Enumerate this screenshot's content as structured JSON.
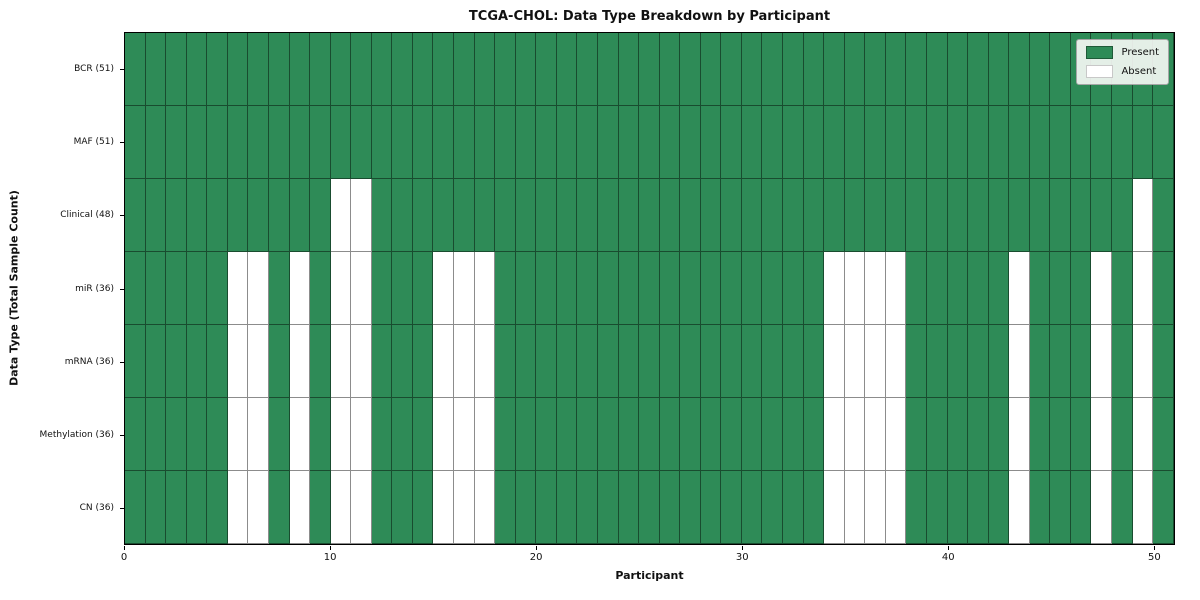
{
  "title": "TCGA-CHOL: Data Type Breakdown by Participant",
  "xlabel": "Participant",
  "ylabel": "Data Type (Total Sample Count)",
  "legend": {
    "present_label": "Present",
    "absent_label": "Absent"
  },
  "colors": {
    "present": "#2e8b57",
    "absent": "#ffffff",
    "grid": "rgba(0,0,0,0.45)",
    "frame": "#000000"
  },
  "chart_data": {
    "type": "heatmap",
    "title": "TCGA-CHOL: Data Type Breakdown by Participant",
    "xlabel": "Participant",
    "ylabel": "Data Type (Total Sample Count)",
    "x_range": [
      0,
      51
    ],
    "x_ticks": [
      0,
      10,
      20,
      30,
      40,
      50
    ],
    "n_participants": 51,
    "cell_states": [
      "Present",
      "Absent"
    ],
    "rows": [
      {
        "name": "BCR",
        "label": "BCR (51)",
        "present_count": 51,
        "absent_participants": []
      },
      {
        "name": "MAF",
        "label": "MAF (51)",
        "present_count": 51,
        "absent_participants": []
      },
      {
        "name": "Clinical",
        "label": "Clinical (48)",
        "present_count": 48,
        "absent_participants": [
          10,
          11,
          49
        ]
      },
      {
        "name": "miR",
        "label": "miR (36)",
        "present_count": 36,
        "absent_participants": [
          5,
          6,
          8,
          10,
          11,
          15,
          16,
          17,
          34,
          35,
          36,
          37,
          43,
          47,
          49
        ]
      },
      {
        "name": "mRNA",
        "label": "mRNA (36)",
        "present_count": 36,
        "absent_participants": [
          5,
          6,
          8,
          10,
          11,
          15,
          16,
          17,
          34,
          35,
          36,
          37,
          43,
          47,
          49
        ]
      },
      {
        "name": "Methylation",
        "label": "Methylation (36)",
        "present_count": 36,
        "absent_participants": [
          5,
          6,
          8,
          10,
          11,
          15,
          16,
          17,
          34,
          35,
          36,
          37,
          43,
          47,
          49
        ]
      },
      {
        "name": "CN",
        "label": "CN (36)",
        "present_count": 36,
        "absent_participants": [
          5,
          6,
          8,
          10,
          11,
          15,
          16,
          17,
          34,
          35,
          36,
          37,
          43,
          47,
          49
        ]
      }
    ]
  }
}
